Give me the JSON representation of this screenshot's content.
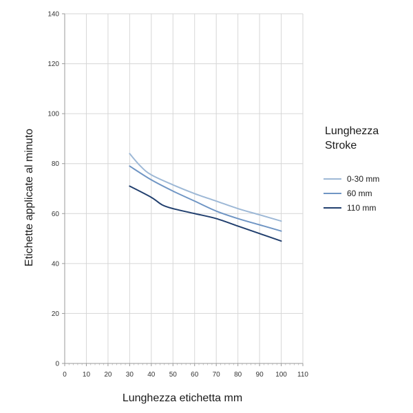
{
  "chart_data": {
    "type": "line",
    "xlabel": "Lunghezza etichetta mm",
    "ylabel": "Etichette applicate al minuto",
    "xlim": [
      0,
      110
    ],
    "ylim": [
      0,
      140
    ],
    "x_ticks": [
      "0",
      "10",
      "20",
      "30",
      "40",
      "50",
      "60",
      "70",
      "80",
      "90",
      "100",
      "110"
    ],
    "y_ticks": [
      "0",
      "20",
      "40",
      "60",
      "80",
      "100",
      "120",
      "140"
    ],
    "grid": true,
    "legend_title_lines": [
      "Lunghezza",
      "Stroke"
    ],
    "legend_position": "right",
    "series": [
      {
        "name": "0-30 mm",
        "color": "#9db8d6",
        "x": [
          30,
          35,
          40,
          50,
          60,
          70,
          80,
          90,
          100
        ],
        "y": [
          84,
          79,
          75.5,
          71.5,
          68,
          65,
          62,
          59.5,
          57
        ]
      },
      {
        "name": "60 mm",
        "color": "#6f95c4",
        "x": [
          30,
          40,
          50,
          60,
          70,
          80,
          90,
          100
        ],
        "y": [
          79,
          73.5,
          69,
          65,
          61,
          58,
          55.5,
          53
        ]
      },
      {
        "name": "110 mm",
        "color": "#213f6e",
        "x": [
          30,
          40,
          45,
          50,
          60,
          70,
          80,
          90,
          100
        ],
        "y": [
          71,
          66.5,
          63.5,
          62,
          60,
          58,
          55,
          52,
          49
        ]
      }
    ]
  }
}
